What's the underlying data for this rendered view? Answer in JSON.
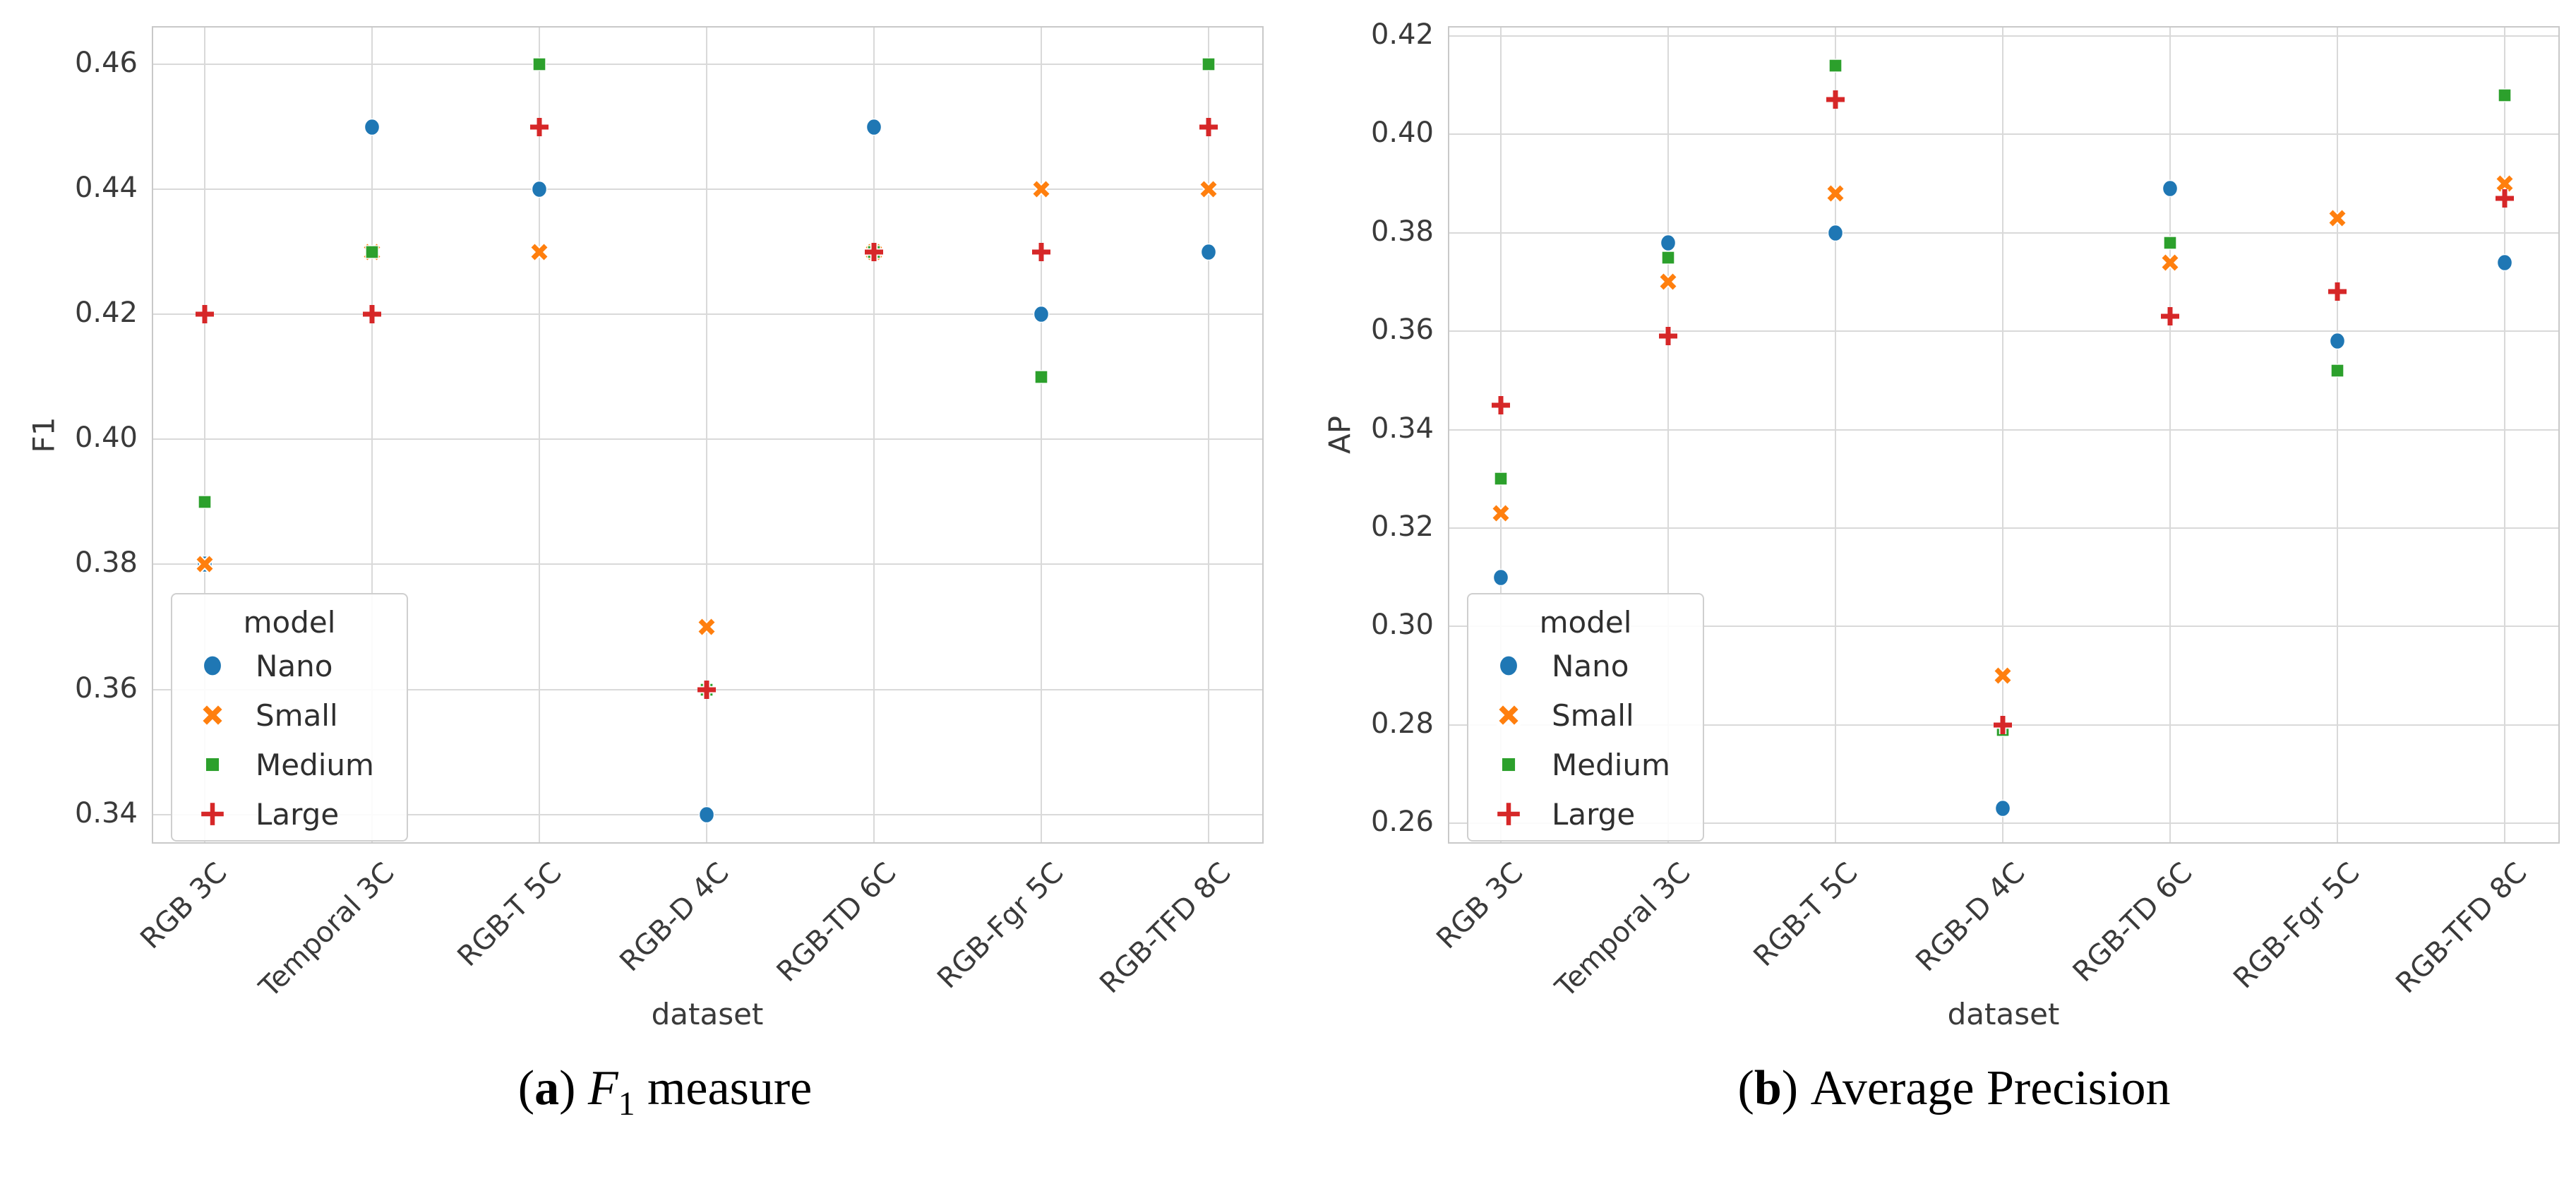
{
  "figure": {
    "background": "#ffffff",
    "grid_color": "#d9d9d9",
    "spine_color": "#c9c9c9",
    "tick_text_color": "#3a3a3a"
  },
  "captions": {
    "a": {
      "open": "(",
      "letter": "a",
      "close": ") ",
      "italic": "F",
      "sub": "1",
      "rest": " measure"
    },
    "b": {
      "open": "(",
      "letter": "b",
      "close": ") ",
      "italic": "",
      "sub": "",
      "rest": "Average Precision"
    }
  },
  "chart_data": [
    {
      "type": "scatter",
      "panel": "a",
      "title": "(a) F1 measure",
      "xlabel": "dataset",
      "ylabel": "F1",
      "categories": [
        "RGB 3C",
        "Temporal 3C",
        "RGB-T 5C",
        "RGB-D 4C",
        "RGB-TD 6C",
        "RGB-Fgr 5C",
        "RGB-TFD 8C"
      ],
      "ylim": [
        0.3351,
        0.4659
      ],
      "yticks": [
        0.34,
        0.36,
        0.38,
        0.4,
        0.42,
        0.44,
        0.46
      ],
      "grid": true,
      "legend": {
        "title": "model",
        "position": "lower-left"
      },
      "series": [
        {
          "name": "Nano",
          "marker": "circle",
          "color": "#1f77b4",
          "values": [
            0.38,
            0.45,
            0.44,
            0.34,
            0.45,
            0.42,
            0.43
          ]
        },
        {
          "name": "Small",
          "marker": "x",
          "color": "#ff7f0e",
          "values": [
            0.38,
            0.43,
            0.43,
            0.37,
            0.43,
            0.44,
            0.44
          ]
        },
        {
          "name": "Medium",
          "marker": "square",
          "color": "#2ca02c",
          "values": [
            0.39,
            0.43,
            0.46,
            0.36,
            0.43,
            0.41,
            0.46
          ]
        },
        {
          "name": "Large",
          "marker": "plus",
          "color": "#d62728",
          "values": [
            0.42,
            0.42,
            0.45,
            0.36,
            0.43,
            0.43,
            0.45
          ]
        }
      ]
    },
    {
      "type": "scatter",
      "panel": "b",
      "title": "(b) Average Precision",
      "xlabel": "dataset",
      "ylabel": "AP",
      "categories": [
        "RGB 3C",
        "Temporal 3C",
        "RGB-T 5C",
        "RGB-D 4C",
        "RGB-TD 6C",
        "RGB-Fgr 5C",
        "RGB-TFD 8C"
      ],
      "ylim": [
        0.2556,
        0.4217
      ],
      "yticks": [
        0.26,
        0.28,
        0.3,
        0.32,
        0.34,
        0.36,
        0.38,
        0.4,
        0.42
      ],
      "grid": true,
      "legend": {
        "title": "model",
        "position": "lower-left"
      },
      "series": [
        {
          "name": "Nano",
          "marker": "circle",
          "color": "#1f77b4",
          "values": [
            0.31,
            0.378,
            0.38,
            0.263,
            0.389,
            0.358,
            0.374
          ]
        },
        {
          "name": "Small",
          "marker": "x",
          "color": "#ff7f0e",
          "values": [
            0.323,
            0.37,
            0.388,
            0.29,
            0.374,
            0.383,
            0.39
          ]
        },
        {
          "name": "Medium",
          "marker": "square",
          "color": "#2ca02c",
          "values": [
            0.33,
            0.375,
            0.414,
            0.279,
            0.378,
            0.352,
            0.408
          ]
        },
        {
          "name": "Large",
          "marker": "plus",
          "color": "#d62728",
          "values": [
            0.345,
            0.359,
            0.407,
            0.28,
            0.363,
            0.368,
            0.387
          ]
        }
      ]
    }
  ]
}
